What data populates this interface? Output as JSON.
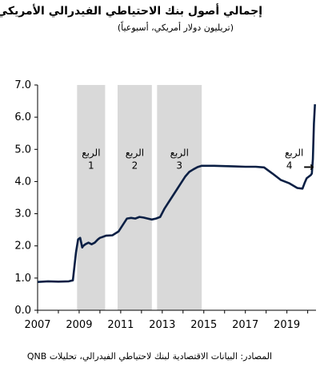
{
  "chart_data": {
    "type": "line",
    "title": "إجمالي أصول بنك الاحتياطي الفيدرالي الأمريكي",
    "subtitle": "(تريليون دولار أمريكي، أسبوعياً)",
    "source": "المصادر: البيانات الاقتصادية لبنك لاحتياطي الفيدرالي، تحليلات QNB",
    "ylim": [
      0,
      7
    ],
    "yticks": [
      "0.0",
      "1.0",
      "2.0",
      "3.0",
      "4.0",
      "5.0",
      "6.0",
      "7.0"
    ],
    "xlim": [
      2007,
      2020.4
    ],
    "xticks": [
      "2007",
      "2009",
      "2011",
      "2013",
      "2015",
      "2017",
      "2019"
    ],
    "grid": false,
    "shaded_regions": [
      {
        "label1": "الربع",
        "label2": "1",
        "start": 2008.9,
        "end": 2010.25
      },
      {
        "label1": "الربع",
        "label2": "2",
        "start": 2010.85,
        "end": 2012.5
      },
      {
        "label1": "الربع",
        "label2": "3",
        "start": 2012.75,
        "end": 2014.9
      }
    ],
    "annotation": {
      "label1": "الربع",
      "label2": "4",
      "arrow": "→"
    },
    "series": [
      {
        "color": "#0a1f44",
        "x": [
          2007.0,
          2007.5,
          2008.0,
          2008.5,
          2008.7,
          2008.85,
          2008.95,
          2009.05,
          2009.15,
          2009.2,
          2009.3,
          2009.45,
          2009.6,
          2009.75,
          2009.9,
          2010.0,
          2010.3,
          2010.6,
          2010.9,
          2011.1,
          2011.3,
          2011.5,
          2011.7,
          2011.9,
          2012.1,
          2012.3,
          2012.5,
          2012.7,
          2012.9,
          2013.1,
          2013.3,
          2013.5,
          2013.7,
          2013.9,
          2014.1,
          2014.3,
          2014.5,
          2014.7,
          2014.9,
          2015.5,
          2016.0,
          2016.5,
          2017.0,
          2017.5,
          2017.9,
          2018.3,
          2018.7,
          2019.1,
          2019.5,
          2019.75,
          2019.85,
          2019.95,
          2020.05,
          2020.15,
          2020.2,
          2020.25,
          2020.3,
          2020.35
        ],
        "values": [
          0.88,
          0.9,
          0.89,
          0.9,
          0.93,
          1.8,
          2.2,
          2.25,
          1.95,
          2.0,
          2.05,
          2.1,
          2.05,
          2.1,
          2.2,
          2.25,
          2.32,
          2.33,
          2.45,
          2.65,
          2.85,
          2.87,
          2.85,
          2.9,
          2.88,
          2.85,
          2.82,
          2.85,
          2.9,
          3.15,
          3.35,
          3.55,
          3.75,
          3.95,
          4.15,
          4.3,
          4.38,
          4.45,
          4.49,
          4.49,
          4.48,
          4.47,
          4.46,
          4.46,
          4.44,
          4.25,
          4.05,
          3.95,
          3.8,
          3.78,
          3.95,
          4.1,
          4.15,
          4.2,
          4.25,
          4.7,
          5.8,
          6.4
        ]
      }
    ]
  }
}
